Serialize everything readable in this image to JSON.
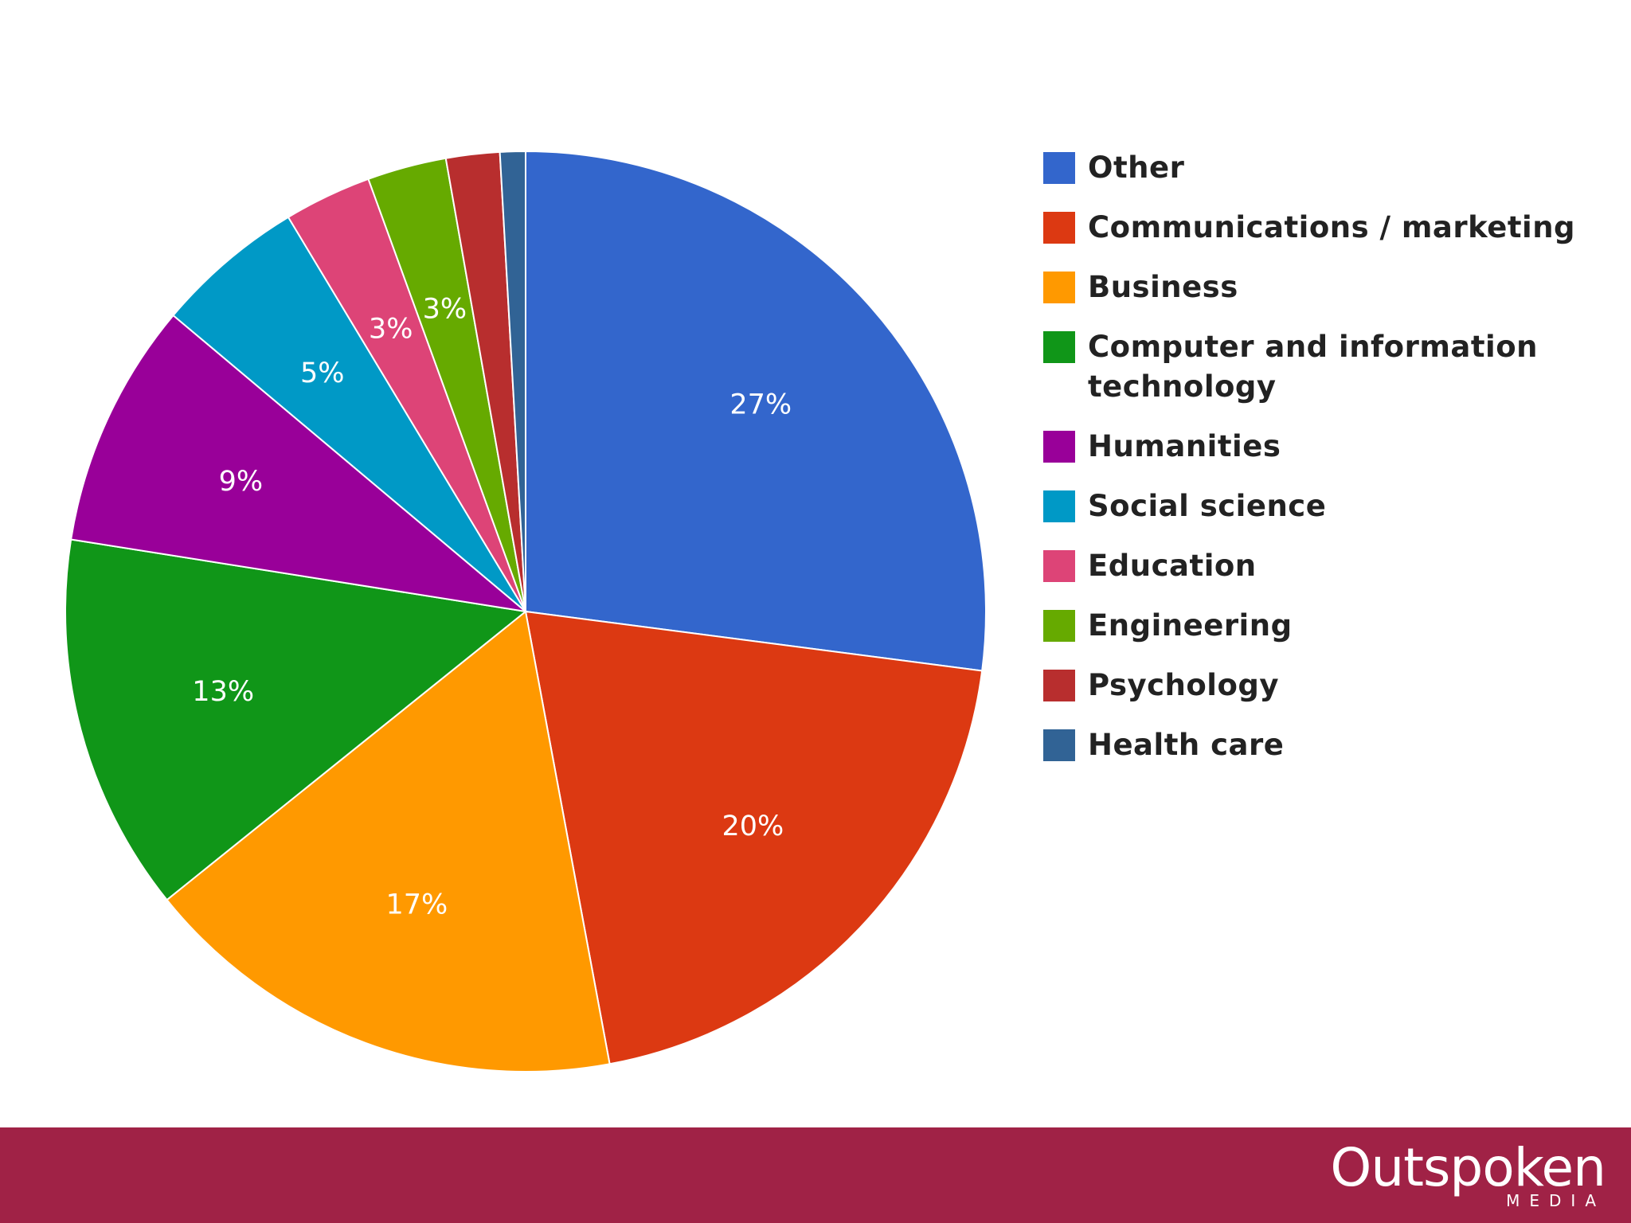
{
  "chart_data": {
    "type": "pie",
    "title": "",
    "start_angle_deg": 0,
    "direction": "clockwise",
    "legend_position": "right",
    "slices": [
      {
        "name": "Other",
        "value": 27.3,
        "label": "27%",
        "color": "#3366cc"
      },
      {
        "name": "Communications / marketing",
        "value": 20.2,
        "label": "20%",
        "color": "#dc3912"
      },
      {
        "name": "Business",
        "value": 17.3,
        "label": "17%",
        "color": "#ff9900"
      },
      {
        "name": "Computer and information technology",
        "value": 13.4,
        "label": "13%",
        "color": "#109618"
      },
      {
        "name": "Humanities",
        "value": 8.7,
        "label": "9%",
        "color": "#990099"
      },
      {
        "name": "Social science",
        "value": 5.3,
        "label": "5%",
        "color": "#0099c6"
      },
      {
        "name": "Education",
        "value": 3.1,
        "label": "3%",
        "color": "#dd4477"
      },
      {
        "name": "Engineering",
        "value": 2.8,
        "label": "3%",
        "color": "#66aa00"
      },
      {
        "name": "Psychology",
        "value": 1.9,
        "label": "",
        "color": "#b82e2e"
      },
      {
        "name": "Health care",
        "value": 0.9,
        "label": "",
        "color": "#316395"
      }
    ]
  },
  "footer": {
    "background": "#a02246",
    "logo_text": "Outspoken",
    "logo_subtext": "MEDIA"
  }
}
